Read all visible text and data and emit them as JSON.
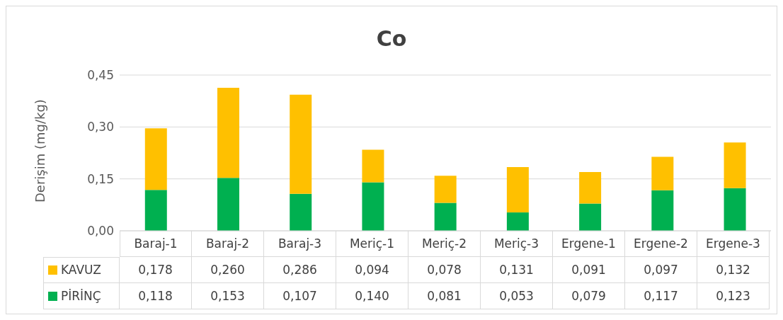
{
  "chart_data": {
    "type": "bar",
    "title": "Co",
    "ylabel": "Derişim (mg/kg)",
    "categories": [
      "Baraj-1",
      "Baraj-2",
      "Baraj-3",
      "Meriç-1",
      "Meriç-2",
      "Meriç-3",
      "Ergene-1",
      "Ergene-2",
      "Ergene-3"
    ],
    "stacked": true,
    "series": [
      {
        "name": "PİRİNÇ",
        "color": "#00b050",
        "values": [
          0.118,
          0.153,
          0.107,
          0.14,
          0.081,
          0.053,
          0.079,
          0.117,
          0.123
        ],
        "value_labels": [
          "0,118",
          "0,153",
          "0,107",
          "0,140",
          "0,081",
          "0,053",
          "0,079",
          "0,117",
          "0,123"
        ]
      },
      {
        "name": "KAVUZ",
        "color": "#ffc000",
        "values": [
          0.178,
          0.26,
          0.286,
          0.094,
          0.078,
          0.131,
          0.091,
          0.097,
          0.132
        ],
        "value_labels": [
          "0,178",
          "0,260",
          "0,286",
          "0,094",
          "0,078",
          "0,131",
          "0,091",
          "0,097",
          "0,132"
        ]
      }
    ],
    "ylim": [
      0,
      0.45
    ],
    "yticks": [
      {
        "value": 0,
        "label": "0,00"
      },
      {
        "value": 0.15,
        "label": "0,15"
      },
      {
        "value": 0.3,
        "label": "0,30"
      },
      {
        "value": 0.45,
        "label": "0,45"
      }
    ],
    "grid": "y",
    "legend": "bottom"
  }
}
